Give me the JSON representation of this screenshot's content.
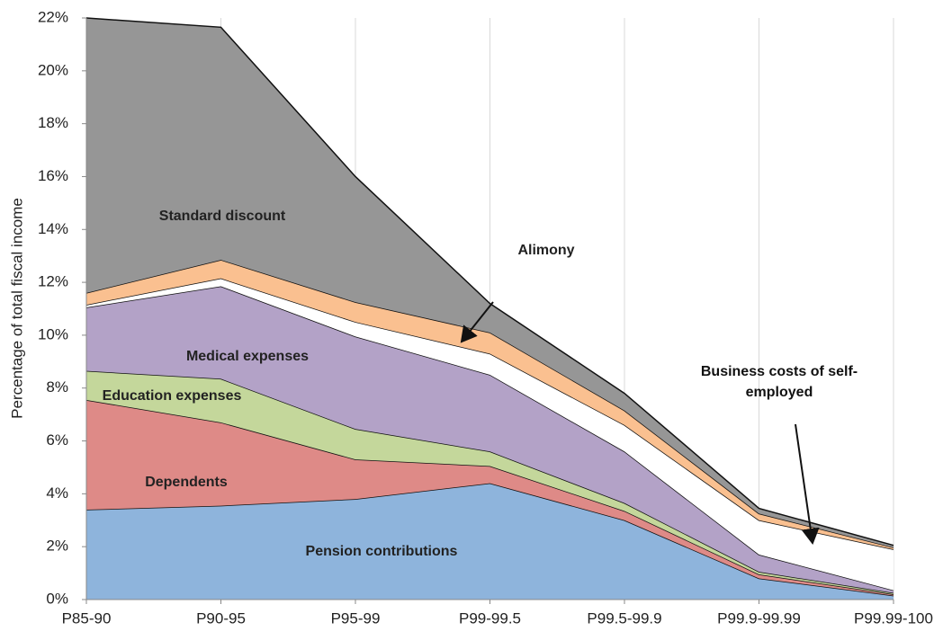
{
  "chart_data": {
    "type": "stacked_area",
    "y_label": "Percentage of total fiscal income",
    "categories": [
      "P85-90",
      "P90-95",
      "P95-99",
      "P99-99.5",
      "P99.5-99.9",
      "P99.9-99.99",
      "P99.99-100"
    ],
    "series": [
      {
        "name": "Pension contributions",
        "color": "#8eb4dc",
        "values": [
          3.4,
          3.55,
          3.8,
          4.4,
          3.0,
          0.8,
          0.15
        ]
      },
      {
        "name": "Dependents",
        "color": "#de8a87",
        "values": [
          4.15,
          3.15,
          1.5,
          0.65,
          0.35,
          0.15,
          0.05
        ]
      },
      {
        "name": "Education expenses",
        "color": "#c4d79b",
        "values": [
          1.1,
          1.65,
          1.15,
          0.55,
          0.3,
          0.1,
          0.05
        ]
      },
      {
        "name": "Medical expenses",
        "color": "#b3a2c7",
        "values": [
          2.4,
          3.5,
          3.5,
          2.9,
          1.95,
          0.65,
          0.1
        ]
      },
      {
        "name": "Business costs of self-employed",
        "color": "#ffffff",
        "values": [
          0.1,
          0.3,
          0.55,
          0.8,
          1.0,
          1.3,
          1.55
        ]
      },
      {
        "name": "Alimony",
        "color": "#fac090",
        "values": [
          0.45,
          0.7,
          0.75,
          0.8,
          0.55,
          0.25,
          0.07
        ]
      },
      {
        "name": "Standard discount",
        "color": "#969696",
        "values": [
          10.4,
          8.8,
          4.75,
          1.1,
          0.65,
          0.2,
          0.08
        ]
      }
    ],
    "ylim": [
      0,
      22
    ],
    "yticks": [
      {
        "value": 0,
        "label": "0%"
      },
      {
        "value": 2,
        "label": "2%"
      },
      {
        "value": 4,
        "label": "4%"
      },
      {
        "value": 6,
        "label": "6%"
      },
      {
        "value": 8,
        "label": "8%"
      },
      {
        "value": 10,
        "label": "10%"
      },
      {
        "value": 12,
        "label": "12%"
      },
      {
        "value": 14,
        "label": "14%"
      },
      {
        "value": 16,
        "label": "16%"
      },
      {
        "value": 18,
        "label": "18%"
      },
      {
        "value": 20,
        "label": "20%"
      },
      {
        "value": 22,
        "label": "22%"
      }
    ],
    "grid": "x"
  }
}
